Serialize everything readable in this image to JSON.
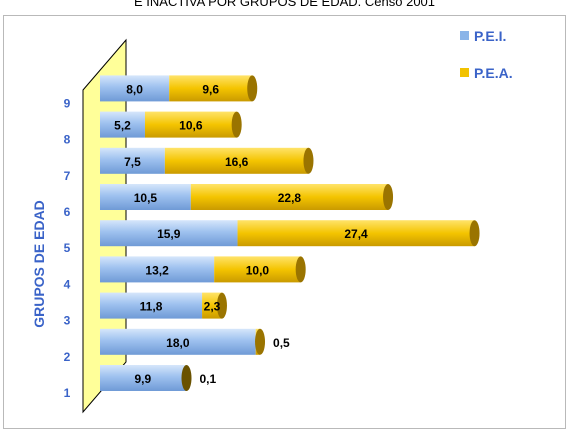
{
  "chart_data": {
    "type": "bar",
    "orientation": "horizontal",
    "stacked": true,
    "three_d": true,
    "title": "E INACTIVA POR GRUPOS DE EDAD.  Censo 2001",
    "ylabel": "GRUPOS DE EDAD",
    "categories": [
      "1",
      "2",
      "3",
      "4",
      "5",
      "6",
      "7",
      "8",
      "9"
    ],
    "series": [
      {
        "name": "P.E.I.",
        "color": "#8ab4e8",
        "values": [
          9.9,
          18.0,
          11.8,
          13.2,
          15.9,
          10.5,
          7.5,
          5.2,
          8.0
        ]
      },
      {
        "name": "P.E.A.",
        "color": "#f2c200",
        "values": [
          0.1,
          0.5,
          2.3,
          10.0,
          27.4,
          22.8,
          16.6,
          10.6,
          9.6
        ]
      }
    ],
    "value_labels": {
      "pei": [
        "9,9",
        "18,0",
        "11,8",
        "13,2",
        "15,9",
        "10,5",
        "7,5",
        "5,2",
        "8,0"
      ],
      "pea": [
        "0,1",
        "0,5",
        "2,3",
        "10,0",
        "27,4",
        "22,8",
        "16,6",
        "10,6",
        "9,6"
      ]
    },
    "legend_position": "top-right",
    "axis_color": "#3a63c8",
    "wall_color": "#ffff99"
  }
}
